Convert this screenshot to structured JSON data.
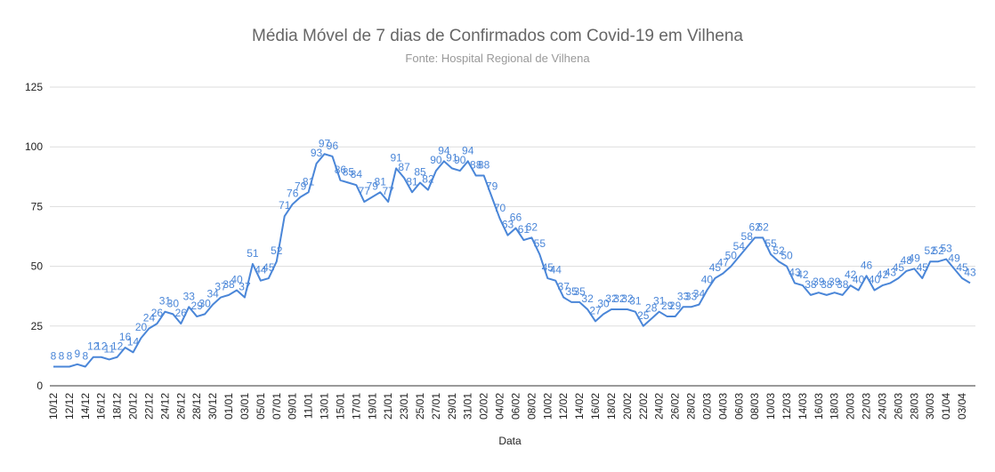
{
  "chart_data": {
    "type": "line",
    "title": "Média Móvel de 7 dias de Confirmados com Covid-19 em Vilhena",
    "subtitle": "Fonte: Hospital Regional de Vilhena",
    "x_label": "Data",
    "categories": [
      "10/12",
      null,
      "12/12",
      null,
      "14/12",
      null,
      "16/12",
      null,
      "18/12",
      null,
      "20/12",
      null,
      "22/12",
      null,
      "24/12",
      null,
      "26/12",
      null,
      "28/12",
      null,
      "30/12",
      null,
      "01/01",
      null,
      "03/01",
      null,
      "05/01",
      null,
      "07/01",
      null,
      "09/01",
      null,
      "11/01",
      null,
      "13/01",
      null,
      "15/01",
      null,
      "17/01",
      null,
      "19/01",
      null,
      "21/01",
      null,
      "23/01",
      null,
      "25/01",
      null,
      "27/01",
      null,
      "29/01",
      null,
      "31/01",
      null,
      "02/02",
      null,
      "04/02",
      null,
      "06/02",
      null,
      "08/02",
      null,
      "10/02",
      null,
      "12/02",
      null,
      "14/02",
      null,
      "16/02",
      null,
      "18/02",
      null,
      "20/02",
      null,
      "22/02",
      null,
      "24/02",
      null,
      "26/02",
      null,
      "28/02",
      null,
      "02/03",
      null,
      "04/03",
      null,
      "06/03",
      null,
      "08/03",
      null,
      "10/03",
      null,
      "12/03",
      null,
      "14/03",
      null,
      "16/03",
      null,
      "18/03",
      null,
      "20/03",
      null,
      "22/03",
      null,
      "24/03",
      null,
      "26/03",
      null,
      "28/03",
      null,
      "30/03",
      null,
      "01/04",
      null,
      "03/04",
      null
    ],
    "series": [
      {
        "color": "#4a86d8",
        "values": [
          8,
          8,
          8,
          9,
          8,
          12,
          12,
          11,
          12,
          16,
          14,
          20,
          24,
          26,
          31,
          30,
          26,
          33,
          29,
          30,
          34,
          37,
          38,
          40,
          37,
          51,
          44,
          45,
          52,
          71,
          76,
          79,
          81,
          93,
          97,
          96,
          86,
          85,
          84,
          77,
          79,
          81,
          77,
          91,
          87,
          81,
          85,
          82,
          90,
          94,
          91,
          90,
          94,
          88,
          88,
          79,
          70,
          63,
          66,
          61,
          62,
          55,
          45,
          44,
          37,
          35,
          35,
          32,
          27,
          30,
          32,
          32,
          32,
          31,
          25,
          28,
          31,
          29,
          29,
          33,
          33,
          34,
          40,
          45,
          47,
          50,
          54,
          58,
          62,
          62,
          55,
          52,
          50,
          43,
          42,
          38,
          39,
          38,
          39,
          38,
          42,
          40,
          46,
          40,
          42,
          43,
          45,
          48,
          49,
          45,
          52,
          52,
          53,
          49,
          45,
          43
        ]
      }
    ],
    "ylim": [
      0,
      125
    ],
    "yticks": [
      0,
      25,
      50,
      75,
      100,
      125
    ],
    "grid": true
  }
}
